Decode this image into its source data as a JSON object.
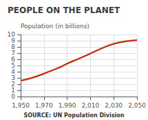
{
  "chart_data": {
    "type": "line",
    "title": "PEOPLE ON THE PLANET",
    "ylabel": "Population (in billions)",
    "annotations": [
      "SOURCE: UN Population Division"
    ],
    "x": [
      1950,
      1955,
      1960,
      1965,
      1970,
      1975,
      1980,
      1985,
      1990,
      1995,
      2000,
      2005,
      2010,
      2015,
      2020,
      2025,
      2030,
      2035,
      2040,
      2045,
      2050
    ],
    "values": [
      2.55,
      2.77,
      3.02,
      3.34,
      3.69,
      4.07,
      4.43,
      4.83,
      5.31,
      5.72,
      6.09,
      6.51,
      6.92,
      7.38,
      7.79,
      8.18,
      8.5,
      8.73,
      8.9,
      9.0,
      9.07
    ],
    "color": "#cc2200",
    "band": {
      "lower": [
        2.37,
        2.59,
        2.84,
        3.16,
        3.51,
        3.89,
        4.25,
        4.65,
        5.13,
        5.54,
        5.91,
        6.33,
        6.74,
        7.2,
        7.61,
        8.0,
        8.32,
        8.55,
        8.72,
        8.82,
        8.89
      ],
      "upper": [
        2.73,
        2.95,
        3.2,
        3.52,
        3.87,
        4.25,
        4.61,
        5.01,
        5.49,
        5.9,
        6.27,
        6.69,
        7.1,
        7.56,
        7.97,
        8.36,
        8.68,
        8.91,
        9.08,
        9.18,
        9.25
      ],
      "color": "#d0d0d0"
    },
    "xlim": [
      1950,
      2050
    ],
    "xticks": [
      1950,
      1970,
      1990,
      2010,
      2030,
      2050
    ],
    "ylim": [
      0,
      10
    ],
    "yticks": [
      0,
      1,
      2,
      3,
      4,
      5,
      6,
      7,
      8,
      9,
      10
    ],
    "grid": true
  }
}
